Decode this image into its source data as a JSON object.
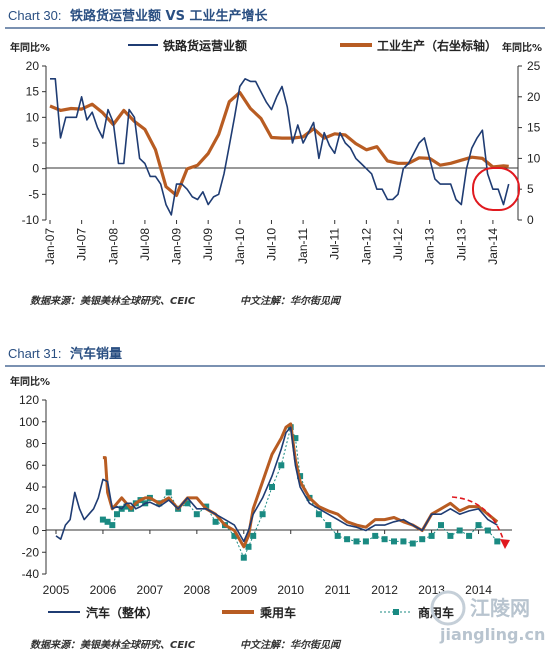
{
  "chart_data": [
    {
      "type": "line",
      "chart_number": "Chart 30:",
      "title": "铁路货运营业额 VS 工业生产增长",
      "ylabel_left": "年同比%",
      "ylabel_right": "年同比%",
      "x_labels": [
        "Jan-07",
        "Jul-07",
        "Jan-08",
        "Jul-08",
        "Jan-09",
        "Jul-09",
        "Jan-10",
        "Jul-10",
        "Jan-11",
        "Jul-11",
        "Jan-12",
        "Jul-12",
        "Jan-13",
        "Jul-13",
        "Jan-14"
      ],
      "ylim_left": [
        -10,
        20
      ],
      "ylim_right": [
        0,
        25
      ],
      "grid": false,
      "legend_position": "top",
      "series": [
        {
          "name": "铁路货运营业额",
          "axis": "left",
          "color": "#1f3c73",
          "x": [
            "2007-01",
            "2007-02",
            "2007-03",
            "2007-04",
            "2007-05",
            "2007-06",
            "2007-07",
            "2007-08",
            "2007-09",
            "2007-10",
            "2007-11",
            "2007-12",
            "2008-01",
            "2008-02",
            "2008-03",
            "2008-04",
            "2008-05",
            "2008-06",
            "2008-07",
            "2008-08",
            "2008-09",
            "2008-10",
            "2008-11",
            "2008-12",
            "2009-01",
            "2009-02",
            "2009-03",
            "2009-04",
            "2009-05",
            "2009-06",
            "2009-07",
            "2009-08",
            "2009-09",
            "2009-10",
            "2009-11",
            "2009-12",
            "2010-01",
            "2010-02",
            "2010-03",
            "2010-04",
            "2010-05",
            "2010-06",
            "2010-07",
            "2010-08",
            "2010-09",
            "2010-10",
            "2010-11",
            "2010-12",
            "2011-01",
            "2011-02",
            "2011-03",
            "2011-04",
            "2011-05",
            "2011-06",
            "2011-07",
            "2011-08",
            "2011-09",
            "2011-10",
            "2011-11",
            "2011-12",
            "2012-01",
            "2012-02",
            "2012-03",
            "2012-04",
            "2012-05",
            "2012-06",
            "2012-07",
            "2012-08",
            "2012-09",
            "2012-10",
            "2012-11",
            "2012-12",
            "2013-01",
            "2013-02",
            "2013-03",
            "2013-04",
            "2013-05",
            "2013-06",
            "2013-07",
            "2013-08",
            "2013-09",
            "2013-10",
            "2013-11",
            "2013-12",
            "2014-01",
            "2014-02",
            "2014-03",
            "2014-04"
          ],
          "values": [
            17.5,
            17.5,
            6,
            10,
            10,
            10,
            14,
            9.5,
            11,
            8,
            6,
            11.5,
            9,
            1,
            1,
            11.5,
            10,
            2,
            1,
            -1.5,
            -1.5,
            -3,
            -7,
            -9,
            -3,
            -3,
            -4,
            -5.5,
            -6,
            -4.5,
            -7,
            -5.5,
            -5,
            -1,
            4.5,
            10,
            16,
            17.5,
            17,
            17,
            15,
            13,
            11.5,
            14,
            16,
            12,
            5,
            8.5,
            5,
            7,
            9,
            2,
            7,
            4.5,
            3,
            7,
            5,
            4,
            2,
            1,
            0,
            -1,
            -4,
            -4,
            -6,
            -6,
            -5,
            0,
            1,
            3,
            5,
            6,
            2,
            -2,
            -3,
            -3,
            -3,
            -6,
            -7,
            0,
            4,
            6,
            7.5,
            -1,
            -4,
            -4,
            -7,
            -3
          ],
          "approximate": true
        },
        {
          "name": "工业生产（右坐标轴）",
          "axis": "right",
          "color": "#b85c22",
          "x": [
            "2007-01",
            "2007-03",
            "2007-05",
            "2007-07",
            "2007-09",
            "2007-11",
            "2008-01",
            "2008-03",
            "2008-05",
            "2008-07",
            "2008-09",
            "2008-11",
            "2009-01",
            "2009-03",
            "2009-05",
            "2009-07",
            "2009-09",
            "2009-11",
            "2010-01",
            "2010-03",
            "2010-05",
            "2010-07",
            "2010-09",
            "2010-11",
            "2011-01",
            "2011-03",
            "2011-05",
            "2011-07",
            "2011-09",
            "2011-11",
            "2012-01",
            "2012-03",
            "2012-05",
            "2012-07",
            "2012-09",
            "2012-11",
            "2013-01",
            "2013-03",
            "2013-05",
            "2013-07",
            "2013-09",
            "2013-11",
            "2014-01",
            "2014-03",
            "2014-04"
          ],
          "values": [
            18.5,
            17.8,
            18.1,
            18,
            18.8,
            17.4,
            15.5,
            17.8,
            16,
            14.7,
            11.4,
            5.4,
            4,
            8.3,
            8.9,
            10.8,
            13.9,
            19.2,
            20.7,
            18.1,
            16.5,
            13.4,
            13.3,
            13.3,
            13.5,
            14.8,
            13.3,
            14,
            13.8,
            12.4,
            11.4,
            11.9,
            9.6,
            9.2,
            9.2,
            10.1,
            10,
            8.9,
            9.2,
            9.7,
            10.2,
            10,
            8.6,
            8.8,
            8.7
          ],
          "approximate": true
        }
      ],
      "annotation": "red circle highlighting early-2014 decline",
      "source": "数据来源：美银美林全球研究、CEIC",
      "note": "中文注解：华尔街见闻"
    },
    {
      "type": "line",
      "chart_number": "Chart 31:",
      "title": "汽车销量",
      "ylabel": "年同比%",
      "x_labels": [
        "2005",
        "2006",
        "2007",
        "2008",
        "2009",
        "2010",
        "2011",
        "2012",
        "2013",
        "2014"
      ],
      "ylim": [
        -40,
        120
      ],
      "grid": false,
      "legend_position": "bottom",
      "series": [
        {
          "name": "汽车（整体）",
          "color": "#1f3c73",
          "x": [
            2005.0,
            2005.1,
            2005.2,
            2005.3,
            2005.4,
            2005.5,
            2005.6,
            2005.7,
            2005.8,
            2005.9,
            2006.0,
            2006.1,
            2006.2,
            2006.3,
            2006.4,
            2006.5,
            2006.6,
            2006.7,
            2006.8,
            2006.9,
            2007.0,
            2007.2,
            2007.4,
            2007.6,
            2007.8,
            2008.0,
            2008.2,
            2008.4,
            2008.6,
            2008.8,
            2009.0,
            2009.1,
            2009.2,
            2009.4,
            2009.6,
            2009.8,
            2009.9,
            2010.0,
            2010.1,
            2010.2,
            2010.4,
            2010.6,
            2010.8,
            2011.0,
            2011.2,
            2011.4,
            2011.6,
            2011.8,
            2012.0,
            2012.2,
            2012.4,
            2012.6,
            2012.8,
            2013.0,
            2013.2,
            2013.4,
            2013.6,
            2013.8,
            2014.0,
            2014.2,
            2014.4
          ],
          "values": [
            -5,
            -8,
            5,
            10,
            35,
            20,
            10,
            15,
            20,
            30,
            47,
            45,
            20,
            22,
            20,
            25,
            25,
            20,
            22,
            25,
            26,
            22,
            28,
            20,
            30,
            20,
            20,
            15,
            10,
            5,
            -10,
            0,
            15,
            30,
            50,
            75,
            90,
            95,
            60,
            40,
            25,
            20,
            15,
            10,
            5,
            3,
            0,
            5,
            5,
            8,
            10,
            5,
            0,
            15,
            15,
            20,
            15,
            18,
            20,
            10,
            5
          ],
          "approximate": true
        },
        {
          "name": "乘用车",
          "color": "#b85c22",
          "x": [
            2006.0,
            2006.05,
            2006.1,
            2006.2,
            2006.3,
            2006.4,
            2006.5,
            2006.6,
            2006.7,
            2006.8,
            2006.9,
            2007.0,
            2007.2,
            2007.4,
            2007.6,
            2007.8,
            2008.0,
            2008.2,
            2008.4,
            2008.6,
            2008.8,
            2009.0,
            2009.1,
            2009.2,
            2009.4,
            2009.6,
            2009.8,
            2009.9,
            2010.0,
            2010.1,
            2010.2,
            2010.4,
            2010.6,
            2010.8,
            2011.0,
            2011.2,
            2011.4,
            2011.6,
            2011.8,
            2012.0,
            2012.2,
            2012.4,
            2012.6,
            2012.8,
            2013.0,
            2013.2,
            2013.4,
            2013.6,
            2013.8,
            2014.0,
            2014.2,
            2014.4
          ],
          "values": [
            67,
            67,
            35,
            20,
            25,
            30,
            25,
            20,
            25,
            28,
            30,
            30,
            25,
            30,
            20,
            30,
            30,
            20,
            15,
            5,
            0,
            -15,
            -5,
            20,
            45,
            70,
            85,
            95,
            98,
            65,
            45,
            30,
            22,
            18,
            15,
            8,
            5,
            3,
            10,
            10,
            12,
            8,
            5,
            0,
            15,
            20,
            25,
            18,
            22,
            22,
            15,
            8
          ],
          "approximate": true
        },
        {
          "name": "商用车",
          "color": "#1a8a82",
          "x": [
            2006.0,
            2006.1,
            2006.2,
            2006.3,
            2006.4,
            2006.5,
            2006.6,
            2006.7,
            2006.8,
            2006.9,
            2007.0,
            2007.2,
            2007.4,
            2007.6,
            2007.8,
            2008.0,
            2008.2,
            2008.4,
            2008.6,
            2008.8,
            2009.0,
            2009.1,
            2009.2,
            2009.4,
            2009.6,
            2009.8,
            2010.0,
            2010.1,
            2010.2,
            2010.4,
            2010.6,
            2010.8,
            2011.0,
            2011.2,
            2011.4,
            2011.6,
            2011.8,
            2012.0,
            2012.2,
            2012.4,
            2012.6,
            2012.8,
            2013.0,
            2013.2,
            2013.4,
            2013.6,
            2013.8,
            2014.0,
            2014.2,
            2014.4
          ],
          "values": [
            10,
            8,
            5,
            15,
            20,
            22,
            20,
            25,
            28,
            25,
            30,
            25,
            35,
            20,
            25,
            15,
            22,
            8,
            5,
            -5,
            -25,
            -15,
            -5,
            15,
            40,
            60,
            95,
            85,
            50,
            30,
            15,
            5,
            -5,
            -8,
            -10,
            -10,
            -5,
            -8,
            -10,
            -10,
            -12,
            -8,
            -5,
            5,
            -5,
            0,
            -5,
            5,
            0,
            -10
          ],
          "approximate": true
        }
      ],
      "annotation": "red dashed arrow indicating downturn in 2014",
      "source": "数据来源：美银美林全球研究、CEIC",
      "note": "中文注解：华尔街见闻"
    }
  ],
  "watermark": {
    "cn": "江陵网",
    "en": "jiangling.cn"
  }
}
